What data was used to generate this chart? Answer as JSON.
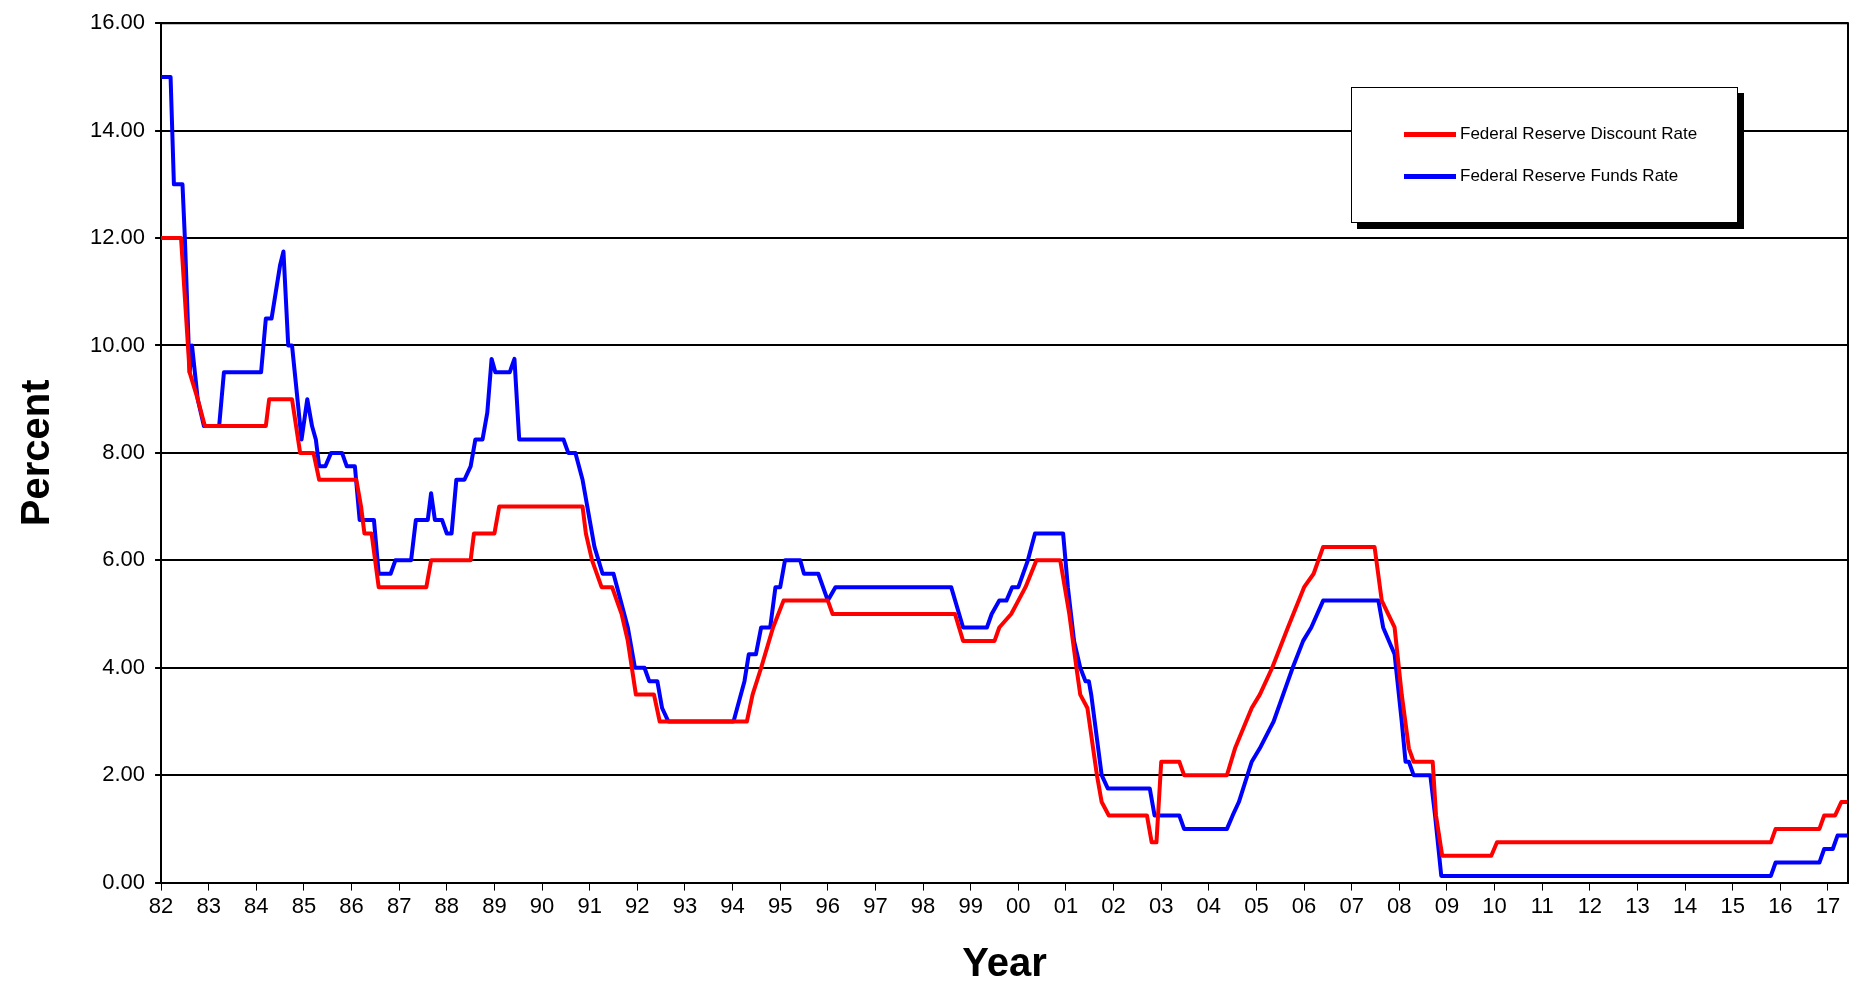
{
  "chart_data": {
    "type": "line",
    "xlabel": "Year",
    "ylabel": "Percent",
    "xlim": [
      1982,
      2017.42
    ],
    "xticks": [
      {
        "value": 1982,
        "label": "82"
      },
      {
        "value": 1983,
        "label": "83"
      },
      {
        "value": 1984,
        "label": "84"
      },
      {
        "value": 1985,
        "label": "85"
      },
      {
        "value": 1986,
        "label": "86"
      },
      {
        "value": 1987,
        "label": "87"
      },
      {
        "value": 1988,
        "label": "88"
      },
      {
        "value": 1989,
        "label": "89"
      },
      {
        "value": 1990,
        "label": "90"
      },
      {
        "value": 1991,
        "label": "91"
      },
      {
        "value": 1992,
        "label": "92"
      },
      {
        "value": 1993,
        "label": "93"
      },
      {
        "value": 1994,
        "label": "94"
      },
      {
        "value": 1995,
        "label": "95"
      },
      {
        "value": 1996,
        "label": "96"
      },
      {
        "value": 1997,
        "label": "97"
      },
      {
        "value": 1998,
        "label": "98"
      },
      {
        "value": 1999,
        "label": "99"
      },
      {
        "value": 2000,
        "label": "00"
      },
      {
        "value": 2001,
        "label": "01"
      },
      {
        "value": 2002,
        "label": "02"
      },
      {
        "value": 2003,
        "label": "03"
      },
      {
        "value": 2004,
        "label": "04"
      },
      {
        "value": 2005,
        "label": "05"
      },
      {
        "value": 2006,
        "label": "06"
      },
      {
        "value": 2007,
        "label": "07"
      },
      {
        "value": 2008,
        "label": "08"
      },
      {
        "value": 2009,
        "label": "09"
      },
      {
        "value": 2010,
        "label": "10"
      },
      {
        "value": 2011,
        "label": "11"
      },
      {
        "value": 2012,
        "label": "12"
      },
      {
        "value": 2013,
        "label": "13"
      },
      {
        "value": 2014,
        "label": "14"
      },
      {
        "value": 2015,
        "label": "15"
      },
      {
        "value": 2016,
        "label": "16"
      },
      {
        "value": 2017,
        "label": "17"
      }
    ],
    "ylim": [
      0,
      16
    ],
    "yticks": [
      {
        "value": 0,
        "label": "0.00"
      },
      {
        "value": 2,
        "label": "2.00"
      },
      {
        "value": 4,
        "label": "4.00"
      },
      {
        "value": 6,
        "label": "6.00"
      },
      {
        "value": 8,
        "label": "8.00"
      },
      {
        "value": 10,
        "label": "10.00"
      },
      {
        "value": 12,
        "label": "12.00"
      },
      {
        "value": 14,
        "label": "14.00"
      },
      {
        "value": 16,
        "label": "16.00"
      }
    ],
    "grid": "y",
    "legend": "top right",
    "marker": "none",
    "line_style": "solid",
    "series": [
      {
        "name": "Federal Reserve Discount Rate",
        "color": "#ff0000",
        "x": [
          1982.0,
          1982.42,
          1982.6,
          1982.77,
          1982.92,
          1984.2,
          1984.27,
          1984.75,
          1984.92,
          1985.2,
          1985.32,
          1986.1,
          1986.2,
          1986.27,
          1986.42,
          1986.57,
          1987.57,
          1987.67,
          1988.5,
          1988.57,
          1989.0,
          1989.1,
          1990.85,
          1990.92,
          1991.05,
          1991.25,
          1991.47,
          1991.67,
          1991.8,
          1991.97,
          1992.35,
          1992.47,
          1994.3,
          1994.42,
          1994.6,
          1994.85,
          1995.07,
          1996.0,
          1996.1,
          1998.67,
          1998.84,
          1999.5,
          1999.6,
          1999.85,
          2000.0,
          2000.15,
          2000.38,
          2000.88,
          2001.07,
          2001.22,
          2001.3,
          2001.45,
          2001.65,
          2001.75,
          2001.9,
          2002.7,
          2002.8,
          2002.9,
          2003.0,
          2003.38,
          2003.48,
          2004.38,
          2004.55,
          2004.9,
          2005.07,
          2005.33,
          2005.66,
          2006.0,
          2006.2,
          2006.4,
          2007.48,
          2007.63,
          2007.9,
          2008.05,
          2008.2,
          2008.3,
          2008.7,
          2008.77,
          2008.9,
          2009.93,
          2010.05,
          2015.8,
          2015.9,
          2016.82,
          2016.92,
          2017.15,
          2017.28,
          2017.42
        ],
        "values": [
          12,
          12,
          9.5,
          9,
          8.5,
          8.5,
          9,
          9,
          8,
          8,
          7.5,
          7.5,
          7,
          6.5,
          6.5,
          5.5,
          5.5,
          6,
          6,
          6.5,
          6.5,
          7,
          7,
          6.5,
          6,
          5.5,
          5.5,
          5,
          4.5,
          3.5,
          3.5,
          3,
          3,
          3.5,
          4,
          4.75,
          5.25,
          5.25,
          5,
          5,
          4.5,
          4.5,
          4.75,
          5,
          5.25,
          5.5,
          6,
          6,
          5,
          4,
          3.5,
          3.25,
          2,
          1.5,
          1.25,
          1.25,
          0.75,
          0.75,
          2.25,
          2.25,
          2,
          2,
          2.5,
          3.25,
          3.5,
          4,
          4.75,
          5.5,
          5.75,
          6.25,
          6.25,
          5.25,
          4.75,
          3.5,
          2.5,
          2.25,
          2.25,
          1.25,
          0.5,
          0.5,
          0.75,
          0.75,
          1,
          1,
          1.25,
          1.25,
          1.5,
          1.5
        ]
      },
      {
        "name": "Federal Reserve Funds Rate",
        "color": "#0000ff",
        "x": [
          1982.0,
          1982.2,
          1982.27,
          1982.45,
          1982.5,
          1982.6,
          1982.65,
          1982.77,
          1982.9,
          1983.22,
          1983.32,
          1984.1,
          1984.2,
          1984.32,
          1984.5,
          1984.57,
          1984.67,
          1984.75,
          1984.95,
          1985.07,
          1985.17,
          1985.25,
          1985.32,
          1985.45,
          1985.57,
          1985.8,
          1985.9,
          1986.07,
          1986.17,
          1986.47,
          1986.57,
          1986.82,
          1986.92,
          1987.25,
          1987.35,
          1987.6,
          1987.67,
          1987.75,
          1987.9,
          1988.0,
          1988.1,
          1988.2,
          1988.37,
          1988.5,
          1988.6,
          1988.75,
          1988.85,
          1988.94,
          1989.02,
          1989.32,
          1989.42,
          1989.52,
          1990.45,
          1990.55,
          1990.7,
          1990.85,
          1991.0,
          1991.1,
          1991.27,
          1991.5,
          1991.65,
          1991.8,
          1991.95,
          1992.15,
          1992.25,
          1992.42,
          1992.52,
          1992.65,
          1994.02,
          1994.25,
          1994.34,
          1994.49,
          1994.6,
          1994.79,
          1994.9,
          1995.0,
          1995.1,
          1995.42,
          1995.5,
          1995.8,
          1996.0,
          1996.16,
          1998.59,
          1998.84,
          1999.34,
          1999.44,
          1999.6,
          1999.75,
          1999.87,
          2000.0,
          2000.2,
          2000.35,
          2000.94,
          2001.04,
          2001.17,
          2001.3,
          2001.41,
          2001.48,
          2001.53,
          2001.75,
          2001.88,
          2002.76,
          2002.86,
          2003.38,
          2003.48,
          2004.38,
          2004.5,
          2004.63,
          2004.9,
          2005.07,
          2005.36,
          2005.66,
          2005.76,
          2005.98,
          2006.15,
          2006.4,
          2007.56,
          2007.66,
          2007.9,
          2008.05,
          2008.13,
          2008.2,
          2008.3,
          2008.65,
          2008.75,
          2008.88,
          2015.8,
          2015.9,
          2016.82,
          2016.92,
          2017.1,
          2017.2,
          2017.42
        ],
        "values": [
          15,
          15,
          13,
          13,
          12,
          9.5,
          10,
          9,
          8.5,
          8.5,
          9.5,
          9.5,
          10.5,
          10.5,
          11.5,
          11.75,
          10,
          10,
          8.25,
          9,
          8.5,
          8.25,
          7.75,
          7.75,
          8,
          8,
          7.75,
          7.75,
          6.75,
          6.75,
          5.75,
          5.75,
          6,
          6,
          6.75,
          6.75,
          7.25,
          6.75,
          6.75,
          6.5,
          6.5,
          7.5,
          7.5,
          7.75,
          8.25,
          8.25,
          8.75,
          9.75,
          9.5,
          9.5,
          9.75,
          8.25,
          8.25,
          8,
          8,
          7.5,
          6.75,
          6.25,
          5.75,
          5.75,
          5.25,
          4.75,
          4,
          4,
          3.75,
          3.75,
          3.25,
          3,
          3,
          3.75,
          4.25,
          4.25,
          4.75,
          4.75,
          5.5,
          5.5,
          6,
          6,
          5.75,
          5.75,
          5.25,
          5.5,
          5.5,
          4.75,
          4.75,
          5,
          5.25,
          5.25,
          5.5,
          5.5,
          6,
          6.5,
          6.5,
          5.5,
          4.5,
          4,
          3.75,
          3.75,
          3.5,
          2,
          1.75,
          1.75,
          1.25,
          1.25,
          1,
          1,
          1.25,
          1.5,
          2.25,
          2.5,
          3,
          3.75,
          4,
          4.5,
          4.75,
          5.25,
          5.25,
          4.75,
          4.25,
          3,
          2.25,
          2.25,
          2,
          2,
          1.25,
          0.125,
          0.125,
          0.375,
          0.375,
          0.625,
          0.625,
          0.875,
          0.875
        ]
      }
    ]
  }
}
